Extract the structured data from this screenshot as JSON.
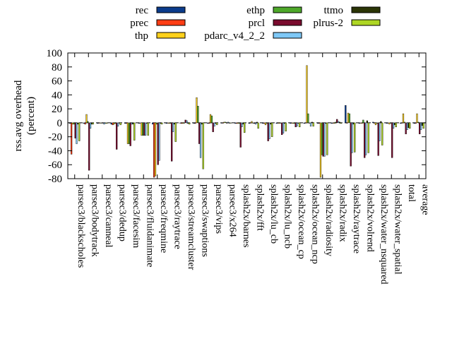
{
  "chart_data": {
    "type": "bar",
    "ylabel": "rss.avg overhead\n(percent)",
    "ylim": [
      -80,
      100
    ],
    "yticks": [
      -80,
      -60,
      -40,
      -20,
      0,
      20,
      40,
      60,
      80,
      100
    ],
    "grid": false,
    "legend_position": "top",
    "categories": [
      "parsec3/blackscholes",
      "parsec3/bodytrack",
      "parsec3/canneal",
      "parsec3/dedup",
      "parsec3/facesim",
      "parsec3/fluidanimate",
      "parsec3/freqmine",
      "parsec3/raytrace",
      "parsec3/streamcluster",
      "parsec3/swaptions",
      "parsec3/vips",
      "parsec3/x264",
      "splash2x/barnes",
      "splash2x/fft",
      "splash2x/lu_cb",
      "splash2x/lu_ncb",
      "splash2x/ocean_cp",
      "splash2x/ocean_ncp",
      "splash2x/radiosity",
      "splash2x/radix",
      "splash2x/raytrace",
      "splash2x/volrend",
      "splash2x/water_nsquared",
      "splash2x/water_spatial",
      "total",
      "average"
    ],
    "series": [
      {
        "name": "rec",
        "color": "#0b3c8c",
        "values": [
          -1,
          -1,
          -1,
          -2,
          -1,
          -1,
          -2,
          -1,
          0,
          -1,
          -1,
          0,
          -1,
          -1,
          -1,
          -1,
          -1,
          -1,
          -1,
          -1,
          25,
          -1,
          1,
          -1,
          -1,
          -1
        ]
      },
      {
        "name": "prec",
        "color": "#ff3d14",
        "values": [
          -45,
          -2,
          0,
          -3,
          -1,
          0,
          -78,
          0,
          -1,
          -1,
          -1,
          0,
          -1,
          0,
          -1,
          0,
          0,
          0,
          -1,
          0,
          0,
          0,
          0,
          0,
          0,
          -1
        ]
      },
      {
        "name": "thp",
        "color": "#ffd11c",
        "values": [
          -2,
          12,
          0,
          -2,
          -30,
          -18,
          -76,
          -1,
          -1,
          36,
          12,
          1,
          -1,
          2,
          -3,
          -1,
          -1,
          82,
          -78,
          -1,
          14,
          -1,
          -3,
          -2,
          13,
          13
        ]
      },
      {
        "name": "ethp",
        "color": "#4ea82a",
        "values": [
          -2,
          2,
          0,
          -1,
          -30,
          -18,
          -2,
          -1,
          0,
          24,
          10,
          1,
          -1,
          0,
          -1,
          0,
          -1,
          13,
          -46,
          1,
          13,
          4,
          -1,
          0,
          1,
          1
        ]
      },
      {
        "name": "prcl",
        "color": "#7a0b2e",
        "values": [
          -22,
          -68,
          0,
          -38,
          -33,
          -18,
          -60,
          -55,
          4,
          -30,
          -13,
          0,
          -35,
          -1,
          -26,
          -17,
          -6,
          0,
          -48,
          5,
          -62,
          -50,
          -47,
          -50,
          -16,
          -16
        ]
      },
      {
        "name": "pdarc_v4_2_2",
        "color": "#7ec8f7",
        "values": [
          -30,
          -8,
          -2,
          -5,
          -2,
          -18,
          -54,
          -13,
          3,
          -50,
          -5,
          1,
          -6,
          -2,
          -23,
          -15,
          -5,
          -5,
          -48,
          2,
          -43,
          -46,
          -26,
          -8,
          -10,
          -10
        ]
      },
      {
        "name": "ttmo",
        "color": "#2b3506",
        "values": [
          -2,
          -2,
          0,
          0,
          -2,
          -1,
          -1,
          -2,
          -1,
          -2,
          -1,
          0,
          -2,
          1,
          -2,
          -1,
          -1,
          1,
          -1,
          1,
          -2,
          3,
          2,
          -3,
          -7,
          -4
        ]
      },
      {
        "name": "plrus-2",
        "color": "#aed623",
        "values": [
          -26,
          -2,
          -1,
          -3,
          -25,
          -18,
          -2,
          -27,
          -2,
          -66,
          -3,
          0,
          -14,
          -8,
          -20,
          -12,
          -6,
          -5,
          -46,
          -1,
          -42,
          -43,
          -32,
          -6,
          -8,
          -8
        ]
      }
    ]
  }
}
